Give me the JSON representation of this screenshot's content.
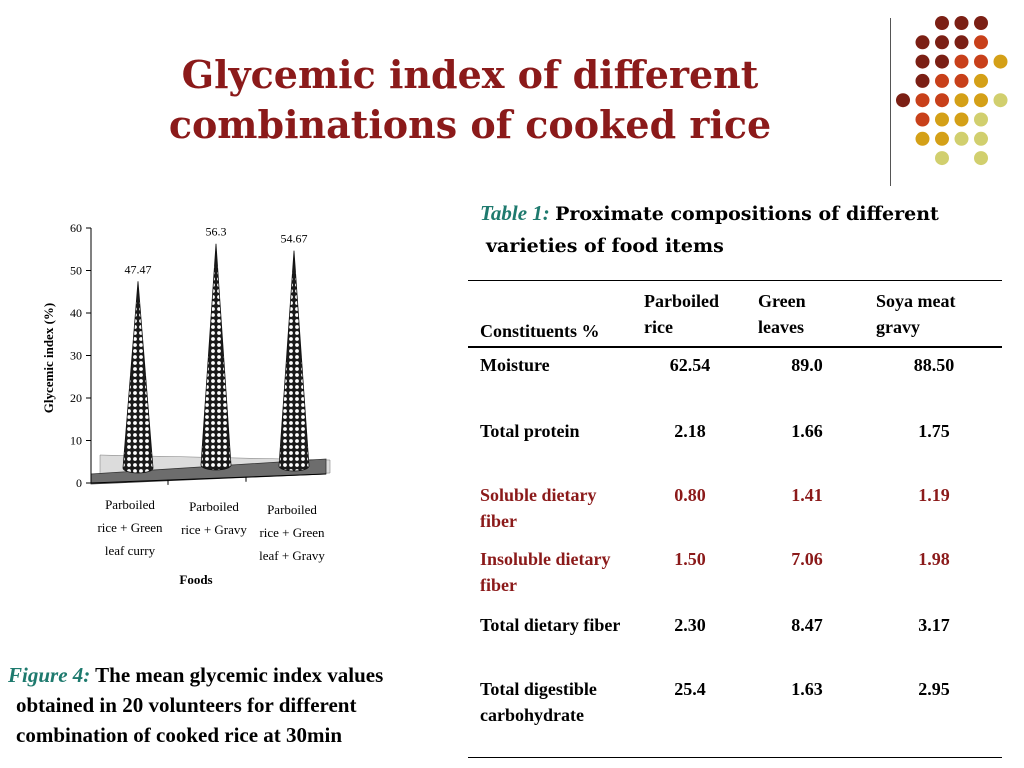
{
  "slide": {
    "title_line1": "Glycemic index of different",
    "title_line2": "combinations of cooked rice"
  },
  "figure_caption": {
    "label": "Figure 4:",
    "line1": "The mean glycemic index values",
    "line2": "obtained in 20 volunteers for different",
    "line3": "combination of cooked rice at 30min"
  },
  "table_caption": {
    "label": "Table 1:",
    "line1": "Proximate compositions of different",
    "line2": "varieties of  food items"
  },
  "table": {
    "headers": [
      "Constituents %",
      "Parboiled rice",
      "Green leaves",
      "Soya meat gravy"
    ],
    "rows": [
      {
        "name": "Moisture",
        "values": [
          "62.54",
          "89.0",
          "88.50"
        ],
        "color": "#000000"
      },
      {
        "name": "Total protein",
        "values": [
          "2.18",
          "1.66",
          "1.75"
        ],
        "color": "#000000"
      },
      {
        "name": "Soluble dietary fiber",
        "values": [
          "0.80",
          "1.41",
          "1.19"
        ],
        "color": "#8b1a1a"
      },
      {
        "name": "Insoluble dietary fiber",
        "values": [
          "1.50",
          "7.06",
          "1.98"
        ],
        "color": "#8b1a1a"
      },
      {
        "name": "Total dietary fiber",
        "values": [
          "2.30",
          "8.47",
          "3.17"
        ],
        "color": "#000000"
      },
      {
        "name": "Total digestible carbohydrate",
        "values": [
          "25.4",
          "1.63",
          "2.95"
        ],
        "color": "#000000"
      }
    ]
  },
  "colors": {
    "title": "#8b1a1a",
    "caption_label": "#1e7a6e",
    "dot_palette": [
      "#7b1f14",
      "#c8401a",
      "#d4a017",
      "#d1cf6e"
    ]
  },
  "chart_data": {
    "type": "bar",
    "style": "3d-cone",
    "categories": [
      [
        "Parboiled",
        "rice + Green",
        "leaf curry"
      ],
      [
        "Parboiled",
        "rice + Gravy"
      ],
      [
        "Parboiled",
        "rice + Green",
        "leaf + Gravy"
      ]
    ],
    "values": [
      47.47,
      56.3,
      54.67
    ],
    "data_labels": [
      "47.47",
      "56.3",
      "54.67"
    ],
    "ylabel": "Glycemic index (%)",
    "xlabel": "Foods",
    "ylim": [
      0,
      60
    ],
    "yticks": [
      0,
      10,
      20,
      30,
      40,
      50,
      60
    ],
    "grid": false,
    "legend": "none"
  }
}
